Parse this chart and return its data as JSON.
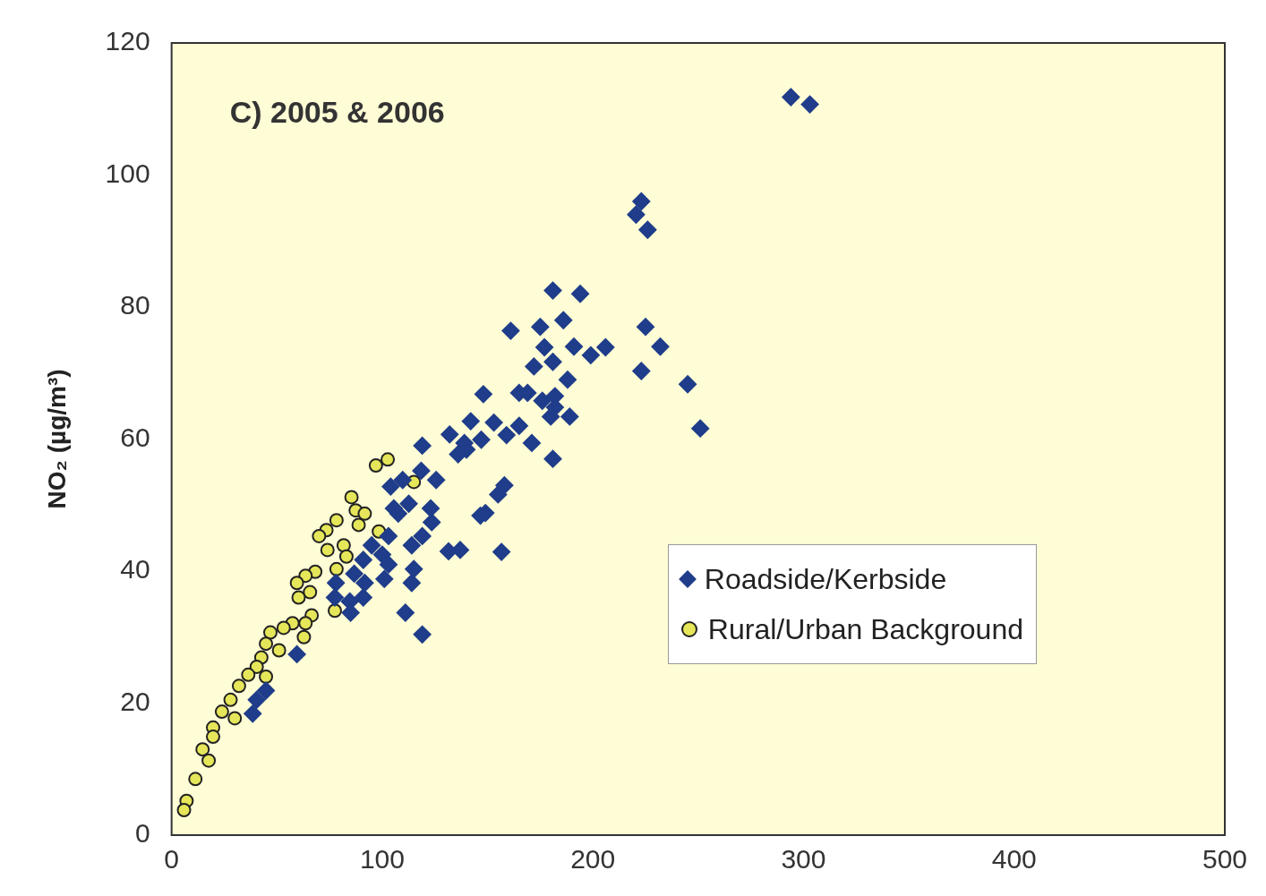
{
  "chart_data": {
    "type": "scatter",
    "title": "C) 2005 & 2006",
    "ylabel": "NO₂ (µg/m³)",
    "xlim": [
      0,
      500
    ],
    "xticks": [
      0,
      100,
      200,
      300,
      400,
      500
    ],
    "ylim": [
      0,
      120
    ],
    "yticks": [
      0,
      20,
      40,
      60,
      80,
      100,
      120
    ],
    "grid": false,
    "legend": "right",
    "series": [
      {
        "name": "Roadside/Kerbside",
        "color": "#1f3d8a",
        "marker": "diamond",
        "x": [
          294,
          303,
          223,
          220.5,
          226,
          181,
          194,
          186,
          161,
          175,
          225,
          232,
          191,
          177,
          206,
          199,
          172,
          181,
          223,
          245,
          188,
          165,
          169,
          182,
          148,
          176,
          182,
          189,
          180,
          142,
          153,
          165,
          251,
          159,
          132,
          139,
          147,
          171,
          119,
          140,
          181,
          136,
          158,
          155,
          149,
          146.6,
          156.6,
          125.6,
          118.5,
          104,
          109.7,
          112.6,
          123.5,
          119,
          114,
          115,
          114,
          111,
          119,
          131.5,
          137,
          123,
          107.6,
          103,
          100,
          101,
          95,
          91,
          86.7,
          91.7,
          84.6,
          91,
          85,
          78,
          77.5,
          59.5,
          44.8,
          40.4,
          38.5,
          103,
          105.5
        ],
        "values": [
          111.8,
          110.7,
          96,
          94,
          91.7,
          82.5,
          82,
          78,
          76.4,
          77,
          77,
          74,
          74,
          73.9,
          73.9,
          72.7,
          71,
          71.7,
          70.3,
          68.3,
          69,
          67,
          67,
          66.5,
          66.8,
          65.8,
          64.8,
          63.4,
          63.4,
          62.7,
          62.5,
          62,
          61.6,
          60.6,
          60.7,
          59.4,
          59.9,
          59.4,
          59,
          58.4,
          57,
          57.7,
          53,
          51.6,
          48.8,
          48.4,
          42.9,
          53.8,
          55.2,
          52.8,
          53.8,
          50.2,
          47.4,
          45.3,
          43.9,
          40.3,
          38.2,
          33.7,
          30.4,
          43,
          43.2,
          49.5,
          48.7,
          45.3,
          42.5,
          38.8,
          43.9,
          41.7,
          39.6,
          38.2,
          35.4,
          36,
          33.7,
          38.2,
          36,
          27.4,
          21.9,
          20.5,
          18.4,
          41,
          49.5
        ]
      },
      {
        "name": "Rural/Urban Background",
        "color": "#e6e65a",
        "marker": "circle",
        "x": [
          102.6,
          97,
          115,
          85.4,
          87.4,
          91.7,
          88.8,
          98.4,
          78.3,
          73.5,
          70,
          81.7,
          74,
          83,
          78.3,
          68.2,
          63.6,
          59.5,
          65.7,
          60.3,
          77.5,
          66.5,
          63.6,
          57.4,
          53.2,
          46.9,
          62.8,
          44.8,
          51,
          42.6,
          40.4,
          36.4,
          44.8,
          32,
          28,
          23.9,
          30,
          19.7,
          19.7,
          14.7,
          17.6,
          11.3,
          7.1,
          5.9
        ],
        "values": [
          56.9,
          56,
          53.5,
          51.2,
          49.2,
          48.7,
          47,
          46,
          47.7,
          46.2,
          45.3,
          43.9,
          43.2,
          42.2,
          40.3,
          39.9,
          39.3,
          38.2,
          36.8,
          36,
          34,
          33.3,
          32.1,
          32.1,
          31.4,
          30.7,
          30,
          29,
          28,
          26.9,
          25.5,
          24.3,
          24,
          22.6,
          20.5,
          18.7,
          17.7,
          16.3,
          14.9,
          13,
          11.3,
          8.5,
          5.2,
          3.8
        ]
      }
    ]
  }
}
